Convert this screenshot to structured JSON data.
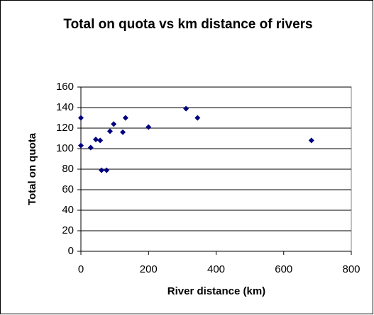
{
  "chart_data": {
    "type": "scatter",
    "title": "Total on quota vs km distance of rivers",
    "xlabel": "River distance (km)",
    "ylabel": "Total on quota",
    "x": [
      0,
      0,
      29,
      44,
      57,
      61,
      76,
      86,
      97,
      124,
      132,
      200,
      311,
      345,
      682
    ],
    "values": [
      130,
      103,
      101,
      109,
      108,
      79,
      79,
      117,
      124,
      116,
      130,
      121,
      139,
      130,
      108
    ],
    "color": "#000080",
    "xlim": [
      0,
      800
    ],
    "xticks": [
      0,
      200,
      400,
      600,
      800
    ],
    "ylim": [
      0,
      160
    ],
    "yticks": [
      0,
      20,
      40,
      60,
      80,
      100,
      120,
      140,
      160
    ],
    "grid": true
  }
}
